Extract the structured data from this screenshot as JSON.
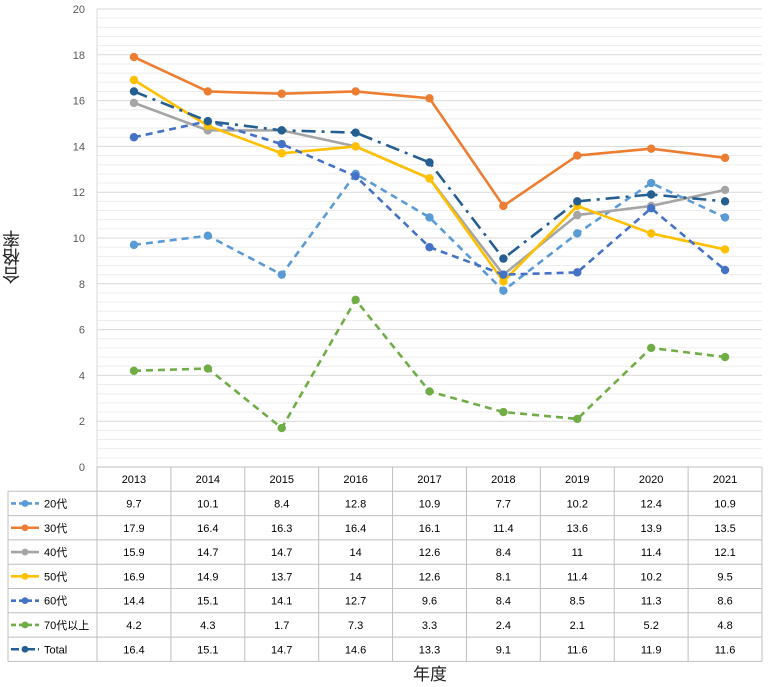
{
  "chart_data": {
    "type": "line",
    "ylabel": "合格率",
    "xlabel": "年度",
    "ylim": [
      0,
      20
    ],
    "yticks": [
      0,
      2,
      4,
      6,
      8,
      10,
      12,
      14,
      16,
      18,
      20
    ],
    "grid": true,
    "legend": "table-below",
    "categories": [
      "2013",
      "2014",
      "2015",
      "2016",
      "2017",
      "2018",
      "2019",
      "2020",
      "2021"
    ],
    "series": [
      {
        "name": "20代",
        "color": "#5b9bd5",
        "dash": "dashed",
        "values": [
          9.7,
          10.1,
          8.4,
          12.8,
          10.9,
          7.7,
          10.2,
          12.4,
          10.9
        ],
        "labels": [
          "9.7",
          "10.1",
          "8.4",
          "12.8",
          "10.9",
          "7.7",
          "10.2",
          "12.4",
          "10.9"
        ]
      },
      {
        "name": "30代",
        "color": "#ed7d31",
        "dash": "solid",
        "values": [
          17.9,
          16.4,
          16.3,
          16.4,
          16.1,
          11.4,
          13.6,
          13.9,
          13.5
        ],
        "labels": [
          "17.9",
          "16.4",
          "16.3",
          "16.4",
          "16.1",
          "11.4",
          "13.6",
          "13.9",
          "13.5"
        ]
      },
      {
        "name": "40代",
        "color": "#a5a5a5",
        "dash": "solid",
        "values": [
          15.9,
          14.7,
          14.7,
          14,
          12.6,
          8.4,
          11,
          11.4,
          12.1
        ],
        "labels": [
          "15.9",
          "14.7",
          "14.7",
          "14",
          "12.6",
          "8.4",
          "11",
          "11.4",
          "12.1"
        ]
      },
      {
        "name": "50代",
        "color": "#ffc000",
        "dash": "solid",
        "values": [
          16.9,
          14.9,
          13.7,
          14,
          12.6,
          8.1,
          11.4,
          10.2,
          9.5
        ],
        "labels": [
          "16.9",
          "14.9",
          "13.7",
          "14",
          "12.6",
          "8.1",
          "11.4",
          "10.2",
          "9.5"
        ]
      },
      {
        "name": "60代",
        "color": "#4472c4",
        "dash": "dashed",
        "values": [
          14.4,
          15.1,
          14.1,
          12.7,
          9.6,
          8.4,
          8.5,
          11.3,
          8.6
        ],
        "labels": [
          "14.4",
          "15.1",
          "14.1",
          "12.7",
          "9.6",
          "8.4",
          "8.5",
          "11.3",
          "8.6"
        ]
      },
      {
        "name": "70代以上",
        "color": "#70ad47",
        "dash": "dashed",
        "values": [
          4.2,
          4.3,
          1.7,
          7.3,
          3.3,
          2.4,
          2.1,
          5.2,
          4.8
        ],
        "labels": [
          "4.2",
          "4.3",
          "1.7",
          "7.3",
          "3.3",
          "2.4",
          "2.1",
          "5.2",
          "4.8"
        ]
      },
      {
        "name": "Total",
        "color": "#255e91",
        "dash": "dashdot",
        "values": [
          16.4,
          15.1,
          14.7,
          14.6,
          13.3,
          9.1,
          11.6,
          11.9,
          11.6
        ],
        "labels": [
          "16.4",
          "15.1",
          "14.7",
          "14.6",
          "13.3",
          "9.1",
          "11.6",
          "11.9",
          "11.6"
        ]
      }
    ]
  }
}
